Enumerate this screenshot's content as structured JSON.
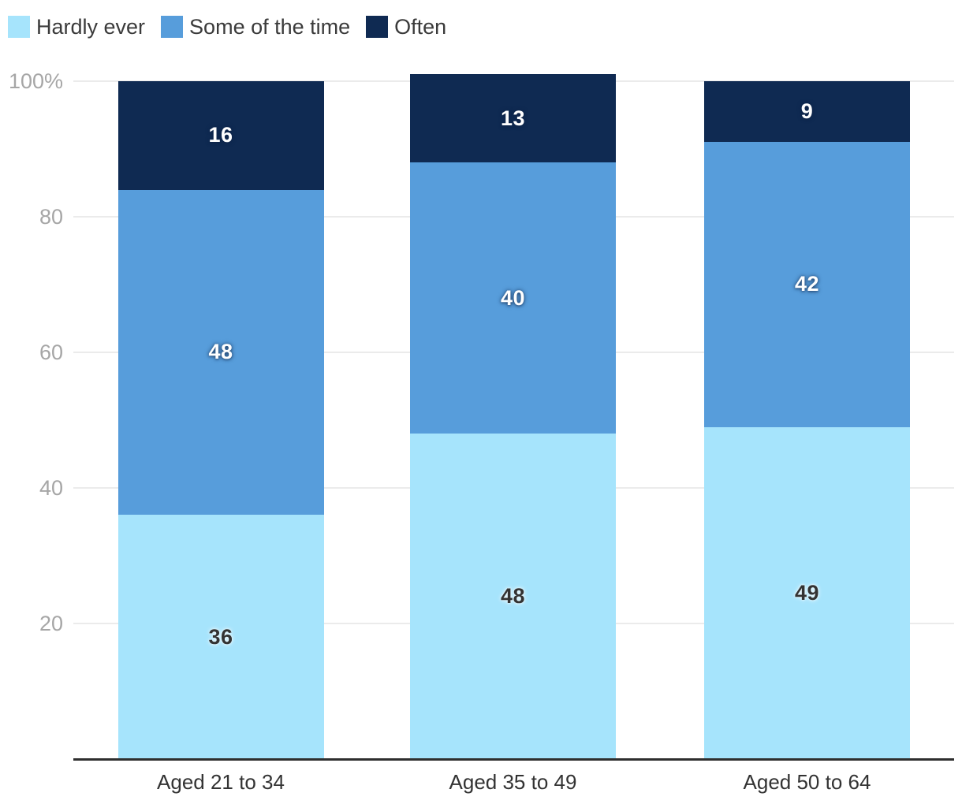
{
  "chart_data": {
    "type": "bar",
    "stacked": true,
    "categories": [
      "Aged 21 to 34",
      "Aged 35 to 49",
      "Aged 50 to 64"
    ],
    "series": [
      {
        "name": "Hardly ever",
        "color": "#A6E4FC",
        "values": [
          36,
          48,
          49
        ],
        "label_text": "dark"
      },
      {
        "name": "Some of the time",
        "color": "#579DDB",
        "values": [
          48,
          40,
          42
        ],
        "label_text": "light"
      },
      {
        "name": "Often",
        "color": "#0F2A52",
        "values": [
          16,
          13,
          9
        ],
        "label_text": "light"
      }
    ],
    "y_axis": {
      "range": [
        0,
        100
      ],
      "ticks": [
        {
          "value": 20,
          "label": "20"
        },
        {
          "value": 40,
          "label": "40"
        },
        {
          "value": 60,
          "label": "60"
        },
        {
          "value": 80,
          "label": "80"
        },
        {
          "value": 100,
          "label": "100%"
        }
      ]
    },
    "grid": true,
    "legend_position": "top-left",
    "colors": {
      "gridline": "#EBEBEB",
      "axis_line": "#2E2E2E",
      "tick_text": "#A6A6A6",
      "category_text": "#333333",
      "legend_text": "#3B3B3B",
      "background": "#FFFFFF"
    }
  }
}
